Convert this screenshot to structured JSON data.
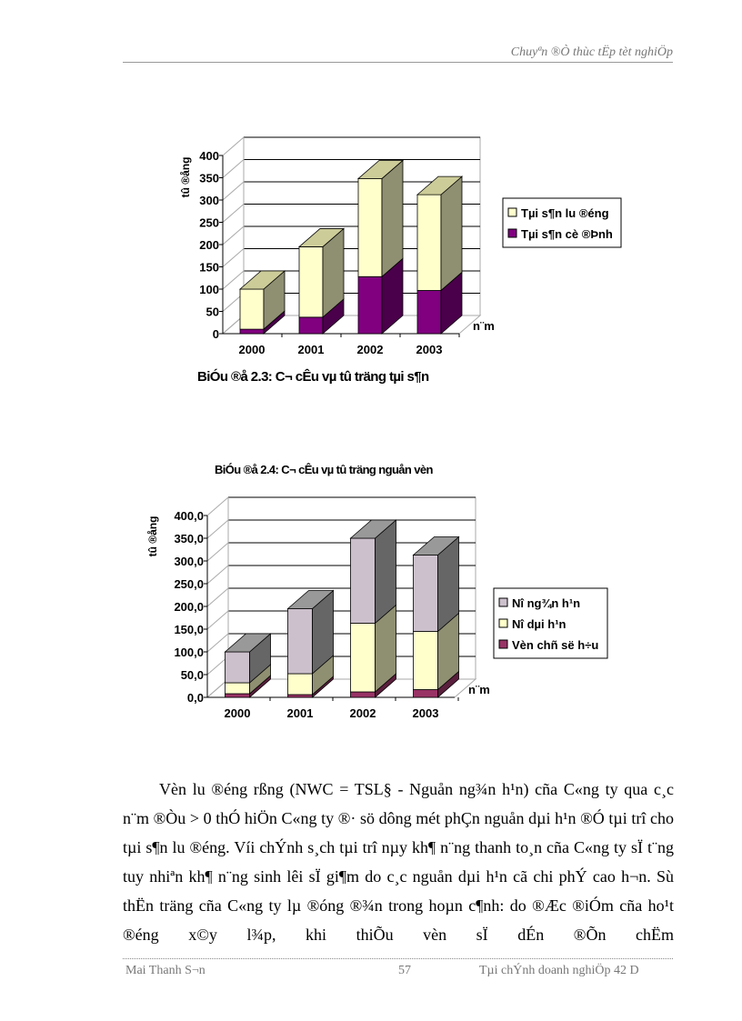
{
  "header": {
    "title": "Chuyªn ®Ò thùc tËp tèt nghiÖp"
  },
  "chart_data": [
    {
      "type": "bar",
      "stacked": true,
      "style": "3d",
      "title": "BiÓu ®å 2.3: C¬ cÊu vµ tû träng tµi s¶n",
      "ylabel": "tû ®ång",
      "xlabel": "n¨m",
      "categories": [
        "2000",
        "2001",
        "2002",
        "2003"
      ],
      "ylim": [
        0,
        400
      ],
      "yticks": [
        "0",
        "50",
        "100",
        "150",
        "200",
        "250",
        "300",
        "350",
        "400"
      ],
      "legend_position": "right",
      "series": [
        {
          "name": "Tµi s¶n cè ®Þnh",
          "values": [
            10,
            37,
            128,
            97
          ],
          "color": "#800080",
          "side": "#4a004a"
        },
        {
          "name": "Tµi s¶n l­u ®éng",
          "values": [
            90,
            158,
            220,
            215
          ],
          "color": "#ffffcc",
          "side": "#8f8f72",
          "top": "#cccc99"
        }
      ]
    },
    {
      "type": "bar",
      "stacked": true,
      "style": "3d",
      "title": "BiÓu ®å 2.4: C¬ cÊu vµ tû träng nguån vèn",
      "ylabel": "tû ®ång",
      "xlabel": "n¨m",
      "categories": [
        "2000",
        "2001",
        "2002",
        "2003"
      ],
      "ylim": [
        0,
        400
      ],
      "yticks": [
        "0,0",
        "50,0",
        "100,0",
        "150,0",
        "200,0",
        "250,0",
        "300,0",
        "350,0",
        "400,0"
      ],
      "legend_position": "right",
      "series": [
        {
          "name": "Vèn chñ së h÷u",
          "values": [
            8,
            6,
            12,
            17
          ],
          "color": "#993366",
          "side": "#5a1f3c"
        },
        {
          "name": "Nî dµi h¹n",
          "values": [
            24,
            46,
            151,
            128
          ],
          "color": "#ffffcc",
          "side": "#8f8f72"
        },
        {
          "name": "Nî ng¾n h¹n",
          "values": [
            68,
            143,
            187,
            168
          ],
          "color": "#ccc0cc",
          "side": "#666666",
          "top": "#999999"
        }
      ]
    }
  ],
  "body": {
    "paragraph": "Vèn l­u ®éng rßng (NWC = TSL§ - Nguån ng¾n h¹n) cña C«ng ty qua c¸c n¨m ®Òu > 0 thÓ hiÖn C«ng ty ®· sö dông mét phÇn nguån dµi h¹n ®Ó tµi trî cho tµi s¶n l­u ®éng. Víi chÝnh s¸ch tµi trî nµy kh¶ n¨ng thanh to¸n cña C«ng ty sÏ t¨ng tuy nhiªn kh¶ n¨ng sinh lêi sÏ gi¶m do c¸c nguån dµi h¹n cã chi phÝ cao h¬n. Sù thËn träng cña C«ng ty lµ ®óng ®¾n trong hoµn c¶nh: do ®Æc ®iÓm cña ho¹t ®éng x©y l¾p, khi thiÕu vèn sÏ dÉn ®Õn chËm"
  },
  "footer": {
    "author": "Mai Thanh S¬n",
    "page": "57",
    "class": "Tµi chÝnh doanh nghiÖp 42 D"
  }
}
